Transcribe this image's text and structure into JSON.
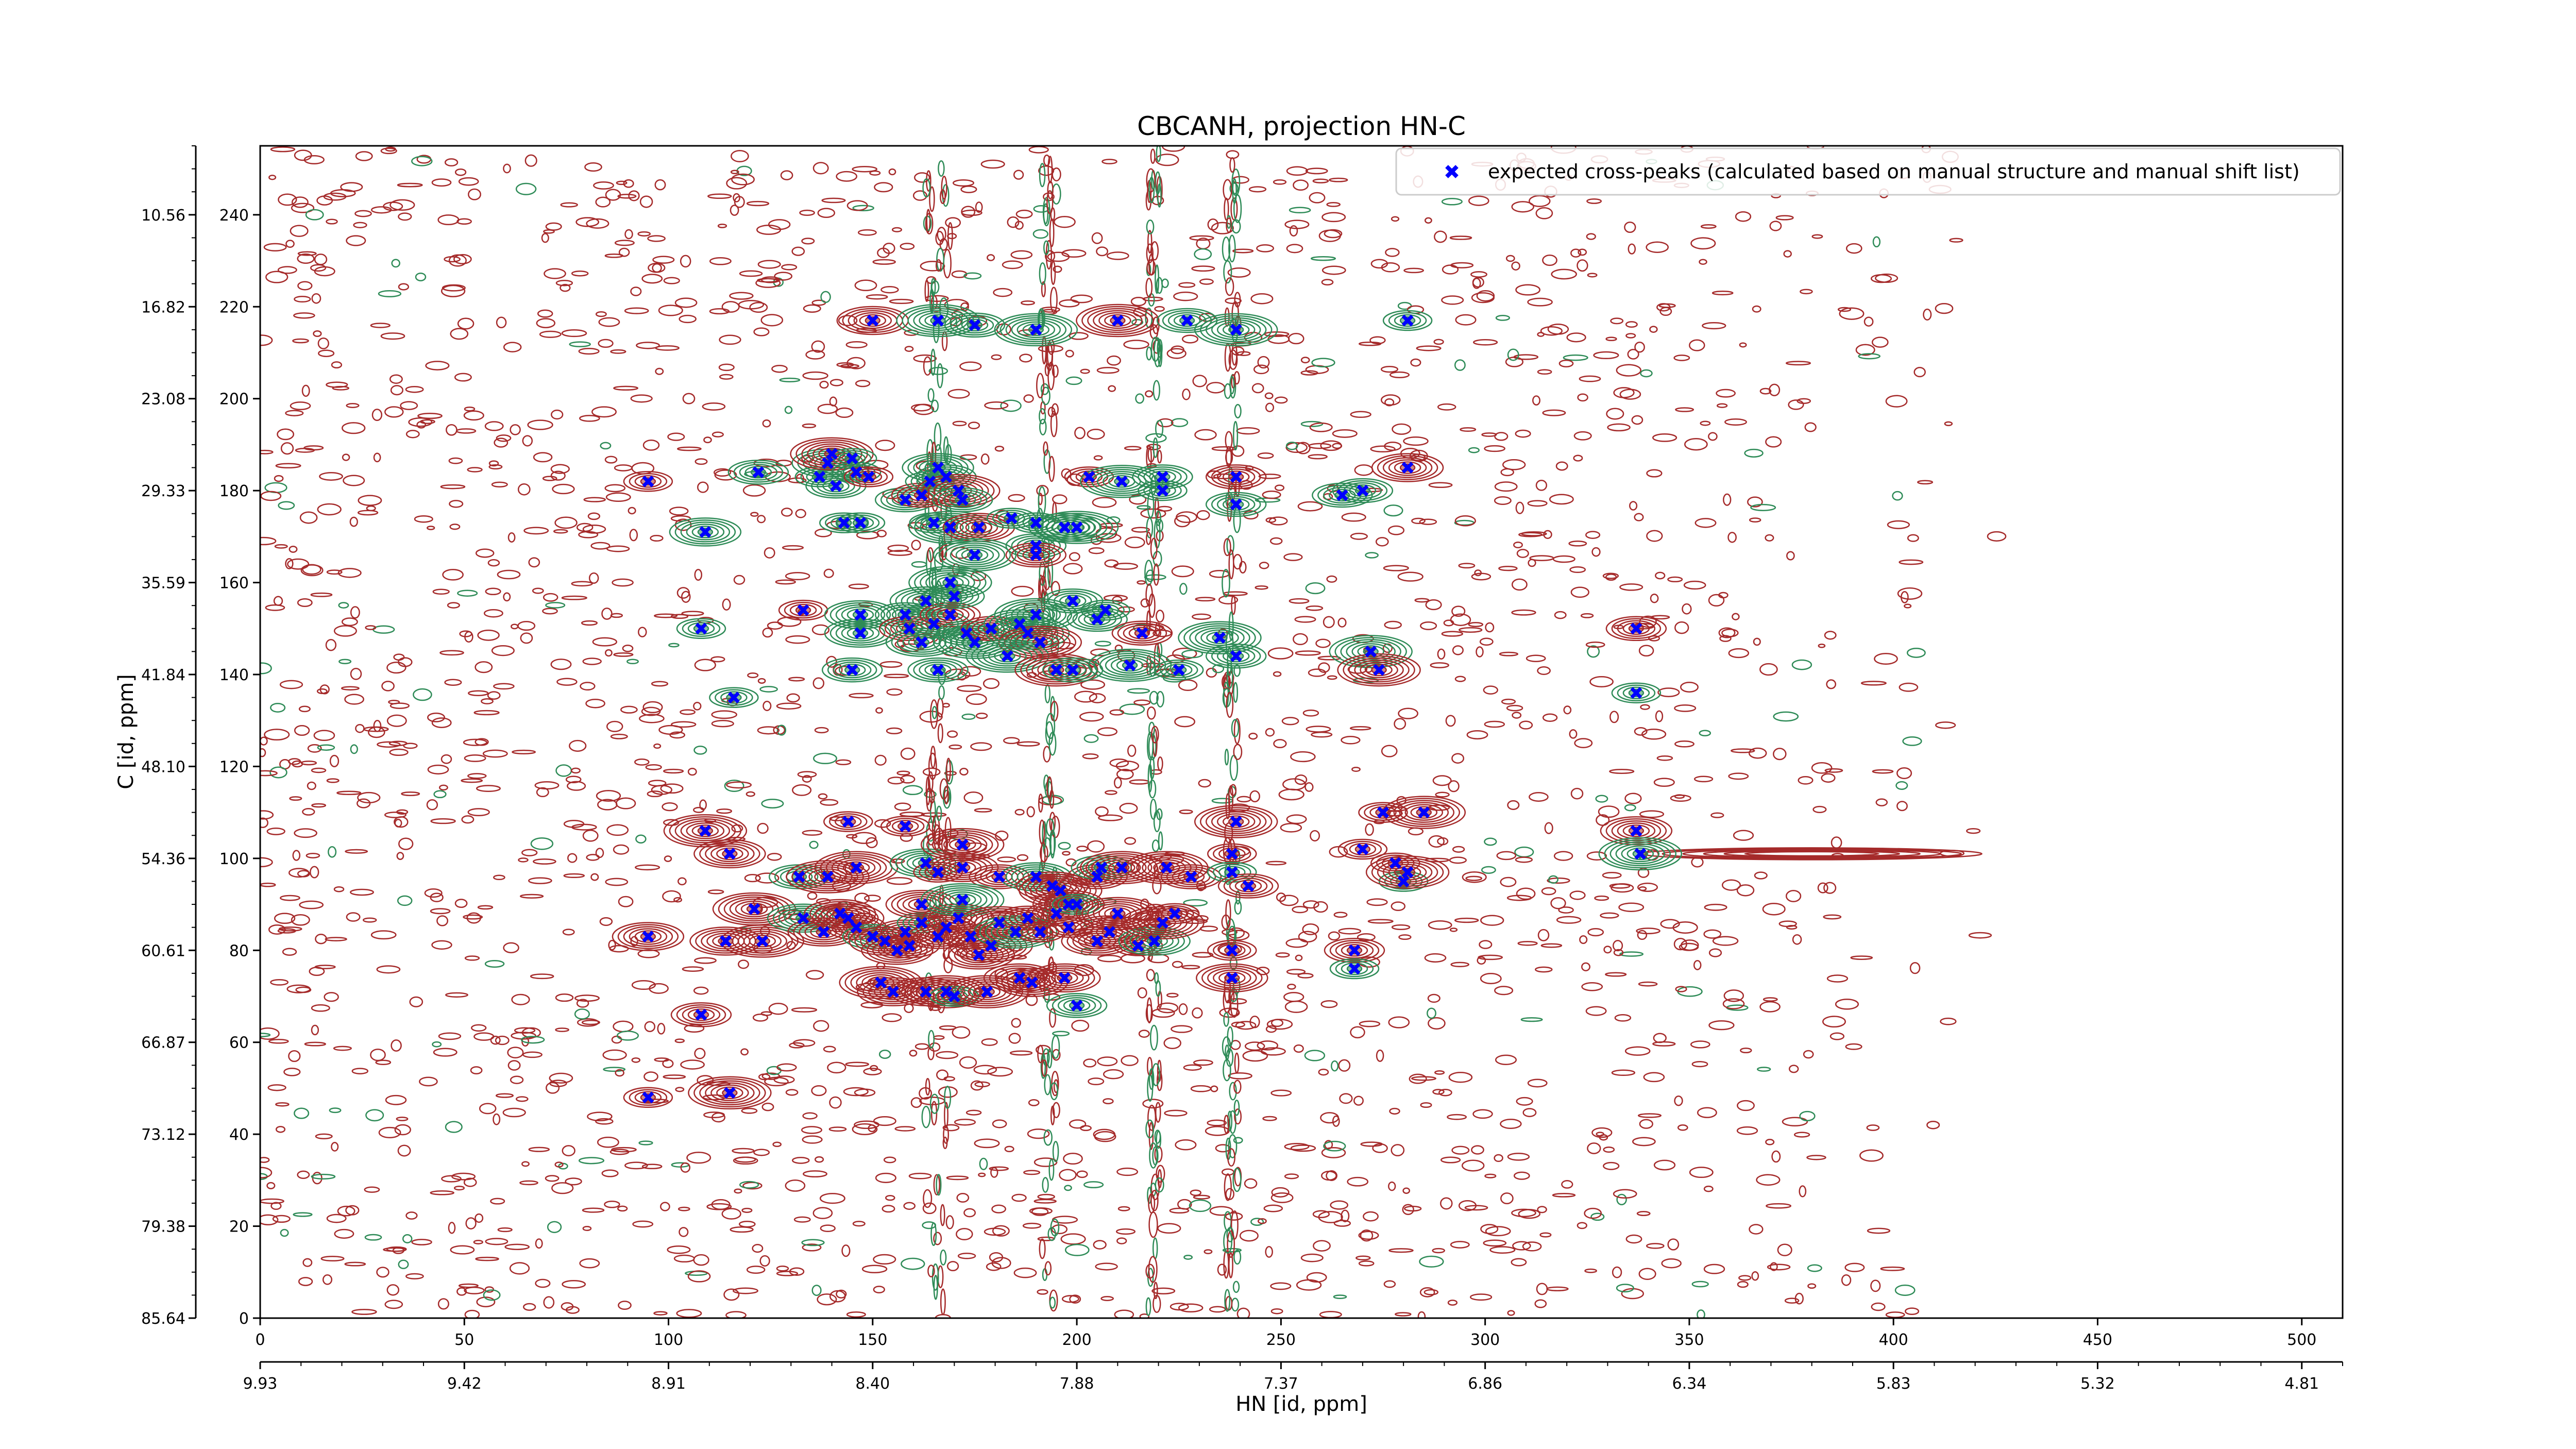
{
  "chart_data": {
    "type": "scatter",
    "title": "CBCANH, projection HN-C",
    "xlabel": "HN [id, ppm]",
    "ylabel": "C [id, ppm]",
    "xlim": [
      0,
      510
    ],
    "ylim": [
      0,
      255
    ],
    "xticks_index": [
      "0",
      "50",
      "100",
      "150",
      "200",
      "250",
      "300",
      "350",
      "400",
      "450",
      "500"
    ],
    "xticks_ppm": [
      "9.93",
      "9.42",
      "8.91",
      "8.40",
      "7.88",
      "7.37",
      "6.86",
      "6.34",
      "5.83",
      "5.32",
      "4.81"
    ],
    "yticks_index": [
      "0",
      "20",
      "40",
      "60",
      "80",
      "100",
      "120",
      "140",
      "160",
      "180",
      "200",
      "220",
      "240"
    ],
    "yticks_ppm": [
      "85.64",
      "79.38",
      "73.12",
      "66.87",
      "60.61",
      "54.36",
      "48.10",
      "41.84",
      "35.59",
      "29.33",
      "23.08",
      "16.82",
      "10.56"
    ],
    "legend": {
      "position": "top-right",
      "label": "expected cross-peaks (calculated based on manual structure and manual shift list)"
    },
    "colors": {
      "positive_contour": "#a52a2a",
      "negative_contour": "#2e8b57",
      "marker": "#0000ff",
      "axes": "#000000"
    },
    "series": [
      {
        "name": "expected cross-peaks (calculated based on manual structure and manual shift list)",
        "marker": "x",
        "points": [
          [
            150,
            217
          ],
          [
            166,
            217
          ],
          [
            175,
            216
          ],
          [
            190,
            215
          ],
          [
            210,
            217
          ],
          [
            227,
            217
          ],
          [
            239,
            215
          ],
          [
            281,
            217
          ],
          [
            95,
            182
          ],
          [
            122,
            184
          ],
          [
            137,
            183
          ],
          [
            139,
            186
          ],
          [
            140,
            188
          ],
          [
            145,
            187
          ],
          [
            141,
            181
          ],
          [
            146,
            184
          ],
          [
            149,
            183
          ],
          [
            143,
            173
          ],
          [
            147,
            173
          ],
          [
            158,
            178
          ],
          [
            162,
            179
          ],
          [
            164,
            182
          ],
          [
            166,
            185
          ],
          [
            168,
            183
          ],
          [
            171,
            180
          ],
          [
            165,
            173
          ],
          [
            169,
            172
          ],
          [
            172,
            178
          ],
          [
            176,
            172
          ],
          [
            184,
            174
          ],
          [
            190,
            173
          ],
          [
            197,
            172
          ],
          [
            203,
            183
          ],
          [
            211,
            182
          ],
          [
            221,
            183
          ],
          [
            221,
            180
          ],
          [
            239,
            183
          ],
          [
            239,
            177
          ],
          [
            265,
            179
          ],
          [
            270,
            180
          ],
          [
            281,
            185
          ],
          [
            109,
            171
          ],
          [
            190,
            168
          ],
          [
            200,
            172
          ],
          [
            190,
            166
          ],
          [
            175,
            166
          ],
          [
            169,
            160
          ],
          [
            108,
            150
          ],
          [
            133,
            154
          ],
          [
            147,
            149
          ],
          [
            147,
            153
          ],
          [
            158,
            153
          ],
          [
            159,
            150
          ],
          [
            162,
            147
          ],
          [
            163,
            156
          ],
          [
            165,
            151
          ],
          [
            169,
            153
          ],
          [
            170,
            157
          ],
          [
            175,
            147
          ],
          [
            173,
            149
          ],
          [
            179,
            150
          ],
          [
            186,
            151
          ],
          [
            188,
            149
          ],
          [
            190,
            153
          ],
          [
            191,
            147
          ],
          [
            199,
            156
          ],
          [
            205,
            152
          ],
          [
            207,
            154
          ],
          [
            216,
            149
          ],
          [
            235,
            148
          ],
          [
            239,
            144
          ],
          [
            272,
            145
          ],
          [
            337,
            150
          ],
          [
            145,
            141
          ],
          [
            166,
            141
          ],
          [
            183,
            144
          ],
          [
            195,
            141
          ],
          [
            199,
            141
          ],
          [
            213,
            142
          ],
          [
            225,
            141
          ],
          [
            274,
            141
          ],
          [
            337,
            136
          ],
          [
            116,
            135
          ],
          [
            109,
            106
          ],
          [
            115,
            101
          ],
          [
            132,
            96
          ],
          [
            139,
            96
          ],
          [
            144,
            108
          ],
          [
            146,
            98
          ],
          [
            158,
            107
          ],
          [
            163,
            99
          ],
          [
            166,
            97
          ],
          [
            172,
            98
          ],
          [
            172,
            103
          ],
          [
            181,
            96
          ],
          [
            190,
            96
          ],
          [
            194,
            94
          ],
          [
            196,
            93
          ],
          [
            198,
            90
          ],
          [
            205,
            96
          ],
          [
            206,
            98
          ],
          [
            211,
            98
          ],
          [
            222,
            98
          ],
          [
            228,
            96
          ],
          [
            238,
            101
          ],
          [
            238,
            97
          ],
          [
            242,
            94
          ],
          [
            239,
            108
          ],
          [
            270,
            102
          ],
          [
            278,
            99
          ],
          [
            280,
            95
          ],
          [
            281,
            97
          ],
          [
            275,
            110
          ],
          [
            285,
            110
          ],
          [
            337,
            106
          ],
          [
            338,
            101
          ],
          [
            95,
            83
          ],
          [
            114,
            82
          ],
          [
            121,
            89
          ],
          [
            123,
            82
          ],
          [
            133,
            87
          ],
          [
            138,
            84
          ],
          [
            142,
            88
          ],
          [
            144,
            87
          ],
          [
            146,
            85
          ],
          [
            150,
            83
          ],
          [
            153,
            82
          ],
          [
            156,
            80
          ],
          [
            159,
            81
          ],
          [
            158,
            84
          ],
          [
            162,
            86
          ],
          [
            162,
            90
          ],
          [
            166,
            83
          ],
          [
            168,
            85
          ],
          [
            171,
            87
          ],
          [
            172,
            91
          ],
          [
            174,
            83
          ],
          [
            176,
            79
          ],
          [
            179,
            81
          ],
          [
            181,
            86
          ],
          [
            185,
            84
          ],
          [
            188,
            87
          ],
          [
            191,
            84
          ],
          [
            195,
            88
          ],
          [
            198,
            85
          ],
          [
            200,
            90
          ],
          [
            205,
            82
          ],
          [
            208,
            84
          ],
          [
            210,
            88
          ],
          [
            215,
            81
          ],
          [
            219,
            82
          ],
          [
            221,
            86
          ],
          [
            224,
            88
          ],
          [
            238,
            80
          ],
          [
            268,
            80
          ],
          [
            268,
            76
          ],
          [
            152,
            73
          ],
          [
            155,
            71
          ],
          [
            163,
            71
          ],
          [
            168,
            71
          ],
          [
            170,
            70
          ],
          [
            178,
            71
          ],
          [
            186,
            74
          ],
          [
            189,
            73
          ],
          [
            197,
            74
          ],
          [
            200,
            68
          ],
          [
            238,
            74
          ],
          [
            108,
            66
          ],
          [
            95,
            48
          ],
          [
            115,
            49
          ]
        ]
      }
    ]
  }
}
